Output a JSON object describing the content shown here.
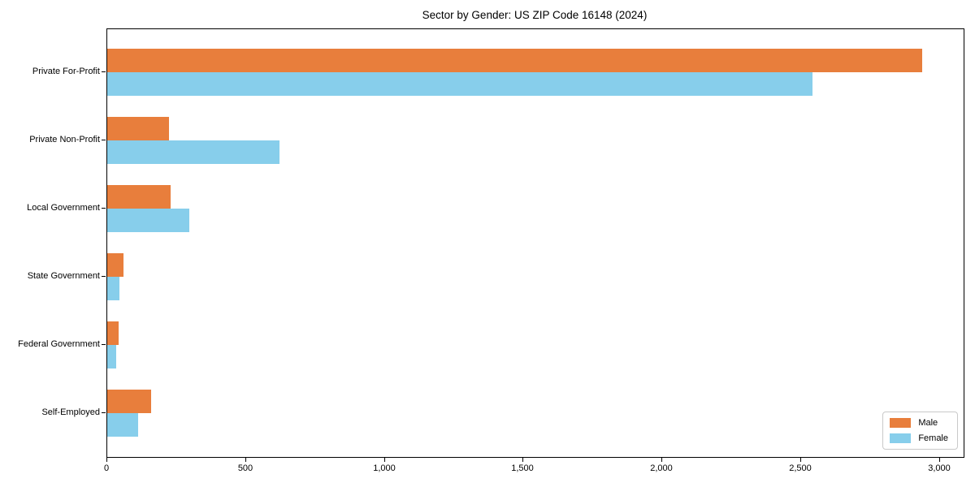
{
  "chart_data": {
    "type": "bar",
    "orientation": "horizontal",
    "title": "Sector by Gender: US ZIP Code 16148 (2024)",
    "categories": [
      "Private For-Profit",
      "Private Non-Profit",
      "Local Government",
      "State Government",
      "Federal Government",
      "Self-Employed"
    ],
    "series": [
      {
        "name": "Male",
        "color": "#e87e3c",
        "values": [
          2935,
          222,
          228,
          60,
          41,
          158
        ]
      },
      {
        "name": "Female",
        "color": "#87ceeb",
        "values": [
          2540,
          620,
          296,
          44,
          31,
          111
        ]
      }
    ],
    "xlabel": "",
    "ylabel": "",
    "xlim": [
      0,
      3085
    ],
    "xticks": [
      0,
      500,
      1000,
      1500,
      2000,
      2500,
      3000
    ],
    "xtick_labels": [
      "0",
      "500",
      "1,000",
      "1,500",
      "2,000",
      "2,500",
      "3,000"
    ],
    "grid": false,
    "legend_position": "lower-right"
  },
  "colors": {
    "male": "#e87e3c",
    "female": "#87ceeb",
    "axis": "#000000",
    "legend_border": "#c9c9c9",
    "background": "#ffffff"
  }
}
